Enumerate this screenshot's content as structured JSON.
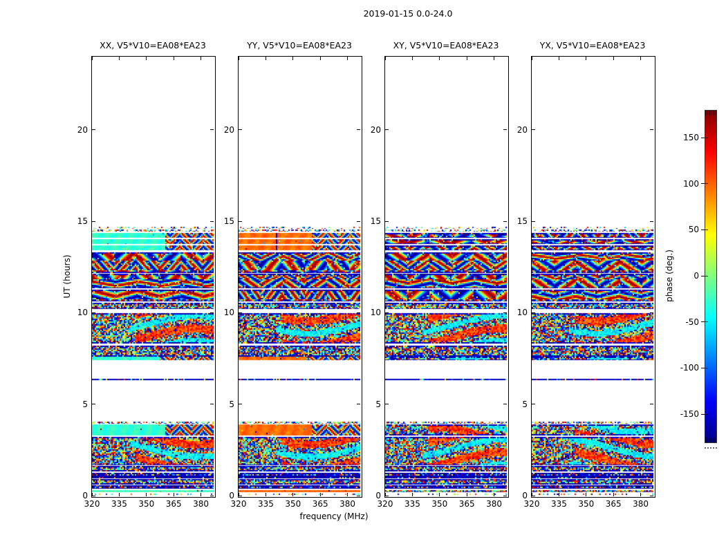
{
  "figure": {
    "title": "2019-01-15 0.0-24.0",
    "background": "#ffffff"
  },
  "axes": {
    "xlabel": "frequency (MHz)",
    "ylabel": "UT (hours)",
    "xticks": [
      320,
      335,
      350,
      365,
      380
    ],
    "yticks": [
      0,
      5,
      10,
      15,
      20
    ],
    "xlim": [
      320,
      387
    ],
    "ylim": [
      0,
      24
    ]
  },
  "panels": [
    {
      "id": "XX",
      "title": "XX, V5*V10=EA08*EA23"
    },
    {
      "id": "YY",
      "title": "YY, V5*V10=EA08*EA23"
    },
    {
      "id": "XY",
      "title": "XY, V5*V10=EA08*EA23"
    },
    {
      "id": "YX",
      "title": "YX, V5*V10=EA08*EA23"
    }
  ],
  "colorbar": {
    "label": "phase (deg.)",
    "ticks": [
      150,
      100,
      50,
      0,
      -50,
      -100,
      -150
    ],
    "vmin": -180,
    "vmax": 180,
    "colormap": "jet",
    "gradient_stops": [
      "#000080",
      "#0000ff",
      "#0080ff",
      "#00ffff",
      "#80ff80",
      "#ffff00",
      "#ff8000",
      "#ff0000",
      "#800000"
    ]
  },
  "chart_data": {
    "type": "heatmap",
    "title": "2019-01-15 0.0-24.0",
    "subplots": [
      "XX, V5*V10=EA08*EA23",
      "YY, V5*V10=EA08*EA23",
      "XY, V5*V10=EA08*EA23",
      "YX, V5*V10=EA08*EA23"
    ],
    "baseline": "V5*V10=EA08*EA23",
    "date": "2019-01-15",
    "x_range_mhz": [
      320,
      387
    ],
    "t_range_hours": [
      0,
      24
    ],
    "value": "phase (deg.)",
    "value_range": [
      -180,
      180
    ],
    "colormap": "jet",
    "calm_phase_value": {
      "XX": 0.42,
      "YY": 0.77,
      "XY": null,
      "YX": null
    },
    "line_phase_value": {
      "XX": 0.44,
      "YY": 0.78
    },
    "no_data_above_hours": 14.7,
    "observation_bands": [
      {
        "t_start": 0.02,
        "t_end": 0.13,
        "texture": "speckle_sparse",
        "note": "sparse colored dots near 0h"
      },
      {
        "t_start": 0.2,
        "t_end": 0.3,
        "texture": "line",
        "note": "thin steady line: XX turquoise, YY orange, cross-hands mixed"
      },
      {
        "t_start": 0.36,
        "t_end": 0.58,
        "texture": "dark",
        "note": "dark dotted rows"
      },
      {
        "t_start": 0.62,
        "t_end": 0.92,
        "texture": "noise",
        "note": "dense speckle rows"
      },
      {
        "t_start": 0.96,
        "t_end": 1.26,
        "texture": "dark",
        "note": "dark striped rows"
      },
      {
        "t_start": 1.32,
        "t_end": 1.62,
        "texture": "noise",
        "note": "dense noise"
      },
      {
        "t_start": 1.66,
        "t_end": 3.22,
        "texture": "noise_wavy",
        "note": "large noisy field with wavy red/cyan streaks"
      },
      {
        "t_start": 3.3,
        "t_end": 3.88,
        "texture": "calm",
        "fringe_start_frac": 0.6,
        "note": "XX solid turquoise / YY solid orange, fringes above ~360 MHz; XY,YX fringes"
      },
      {
        "t_start": 3.92,
        "t_end": 4.04,
        "texture": "speckle",
        "note": "dense speckle row"
      },
      {
        "t_start": 6.3,
        "t_end": 6.4,
        "texture": "darkline",
        "note": "thin dark line across all panels"
      },
      {
        "t_start": 7.42,
        "t_end": 7.58,
        "texture": "calm",
        "fringe_start_frac": 0.55,
        "note": "short calm rows: XX turquoise, YY orange"
      },
      {
        "t_start": 7.6,
        "t_end": 8.22,
        "texture": "noise",
        "note": "dense noise rows"
      },
      {
        "t_start": 8.3,
        "t_end": 9.98,
        "texture": "noise_wavy",
        "note": "noise with sinuous red/orange blobs on high-frequency side"
      },
      {
        "t_start": 10.22,
        "t_end": 10.55,
        "texture": "noise",
        "note": "dense noise"
      },
      {
        "t_start": 10.62,
        "t_end": 11.28,
        "texture": "fringe",
        "note": "coherent diagonal fringes"
      },
      {
        "t_start": 11.32,
        "t_end": 12.12,
        "texture": "fringe",
        "note": "coherent diagonal fringes"
      },
      {
        "t_start": 12.16,
        "t_end": 13.32,
        "texture": "fringe",
        "note": "chevron / herringbone fringes"
      },
      {
        "t_start": 13.42,
        "t_end": 13.7,
        "texture": "calm",
        "fringe_start_frac": 0.6,
        "note": "XX turquoise / YY orange block, fringed right third"
      },
      {
        "t_start": 13.74,
        "t_end": 14.04,
        "texture": "calm",
        "fringe_start_frac": 0.6,
        "note": "XX turquoise / YY orange block, fringed right third"
      },
      {
        "t_start": 14.08,
        "t_end": 14.36,
        "texture": "calm",
        "fringe_start_frac": 0.6,
        "note": "XX turquoise / YY orange block, fringed right third"
      },
      {
        "t_start": 14.42,
        "t_end": 14.55,
        "texture": "speckle",
        "note": "dense speckle row at top of data"
      },
      {
        "t_start": 14.58,
        "t_end": 14.7,
        "texture": "speckle_sparse",
        "note": "sparse dots, last data"
      }
    ]
  }
}
